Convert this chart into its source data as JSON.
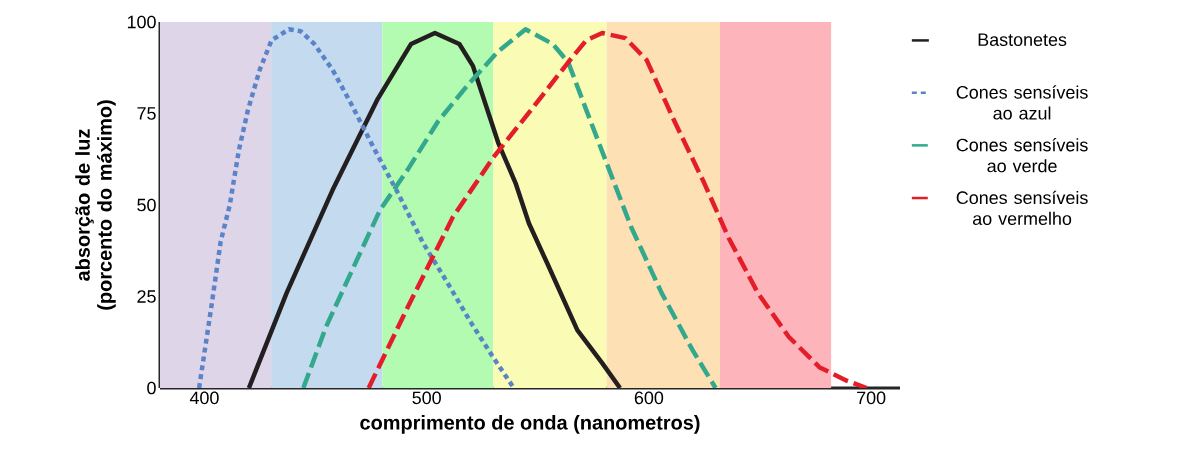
{
  "chart_data": {
    "type": "line",
    "xlabel": "comprimento de onda (nanometros)",
    "ylabel": "absorção de luz (porcento do máximo)",
    "xlim": [
      380,
      713
    ],
    "ylim": [
      0,
      100
    ],
    "xticks": [
      400,
      500,
      600,
      700
    ],
    "yticks": [
      0,
      25,
      50,
      75,
      100
    ],
    "grid": false,
    "legend": "right",
    "marker": "none",
    "bands": [
      {
        "axis": "x",
        "from": 380,
        "to": 430,
        "color": "#ded5e8"
      },
      {
        "axis": "x",
        "from": 430,
        "to": 480,
        "color": "#c4daef"
      },
      {
        "axis": "x",
        "from": 480,
        "to": 530,
        "color": "#b3fbb0"
      },
      {
        "axis": "x",
        "from": 530,
        "to": 581,
        "color": "#fafbb4"
      },
      {
        "axis": "x",
        "from": 581,
        "to": 632,
        "color": "#fde0b4"
      },
      {
        "axis": "x",
        "from": 632,
        "to": 682,
        "color": "#feb4bb"
      }
    ],
    "series": [
      {
        "name": "Bastonetes",
        "color": "#231f20",
        "line_style": "solid",
        "x": [
          420,
          437,
          457.6,
          478,
          493,
          503.7,
          514.7,
          520.8,
          532.2,
          540,
          546,
          554.3,
          567.8,
          579,
          587
        ],
        "values": [
          0,
          26,
          54,
          79,
          94,
          97,
          94,
          88,
          67,
          56,
          45,
          34,
          15.8,
          6.8,
          0
        ]
      },
      {
        "name": "Cones sensíveis ao azul",
        "color": "#5b84c8",
        "line_style": "dotted",
        "x": [
          397.6,
          403.3,
          407.3,
          411.4,
          415.5,
          419.6,
          424.9,
          430.2,
          438,
          443.3,
          449.4,
          457.6,
          465.7,
          476.7,
          487.3,
          498.4,
          509.4,
          520,
          529.8,
          539.2
        ],
        "values": [
          0,
          23,
          40,
          50,
          65,
          76,
          87,
          95,
          98,
          97.5,
          94,
          87,
          78,
          65,
          53,
          39.6,
          28.7,
          17.8,
          8.5,
          0
        ]
      },
      {
        "name": "Cones sensíveis ao verde",
        "color": "#33a88c",
        "line_style": "dashed",
        "x": [
          444.5,
          454.7,
          468.6,
          479,
          491.4,
          505.3,
          518.8,
          532.2,
          544.5,
          556.7,
          563.7,
          571.8,
          580,
          592,
          605.7,
          619.6,
          630
        ],
        "values": [
          0,
          16.7,
          35,
          48.6,
          59.6,
          73,
          83,
          92,
          98,
          94,
          89,
          76,
          63,
          44,
          26,
          10.4,
          0
        ]
      },
      {
        "name": "Cones sensíveis ao vermelho",
        "color": "#e31e2a",
        "line_style": "dashed",
        "x": [
          473.9,
          491.4,
          511.8,
          530,
          547,
          563.7,
          571.8,
          579,
          589.4,
          599,
          611.4,
          624.9,
          635.9,
          649,
          662.9,
          676.7,
          689,
          698
        ],
        "values": [
          0,
          22,
          46.7,
          63,
          76,
          89,
          95,
          97,
          95.6,
          89.6,
          73,
          56,
          41,
          26,
          14,
          5.7,
          2,
          0
        ]
      }
    ]
  }
}
